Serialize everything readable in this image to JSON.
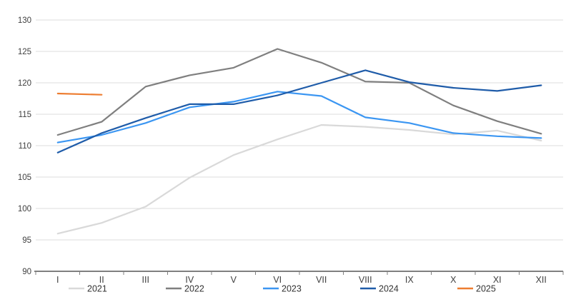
{
  "chart_data": {
    "type": "line",
    "title": "",
    "xlabel": "",
    "ylabel": "",
    "categories": [
      "I",
      "II",
      "III",
      "IV",
      "V",
      "VI",
      "VII",
      "VIII",
      "IX",
      "X",
      "XI",
      "XII"
    ],
    "series": [
      {
        "name": "2021",
        "color": "#D9D9D9",
        "values": [
          96.0,
          97.7,
          100.3,
          104.9,
          108.5,
          111.0,
          113.3,
          113.0,
          112.5,
          111.8,
          112.4,
          110.8
        ]
      },
      {
        "name": "2022",
        "color": "#7F7F7F",
        "values": [
          111.7,
          113.8,
          119.4,
          121.2,
          122.4,
          125.4,
          123.2,
          120.2,
          120.0,
          116.4,
          113.9,
          111.9
        ]
      },
      {
        "name": "2023",
        "color": "#3B96F2",
        "values": [
          110.5,
          111.7,
          113.6,
          116.1,
          117.0,
          118.6,
          117.9,
          114.5,
          113.6,
          112.0,
          111.5,
          111.2
        ]
      },
      {
        "name": "2024",
        "color": "#1F5CA9",
        "values": [
          108.9,
          112.0,
          114.4,
          116.6,
          116.6,
          118.0,
          120.0,
          122.0,
          120.1,
          119.2,
          118.7,
          119.6
        ]
      },
      {
        "name": "2025",
        "color": "#ED7D31",
        "values": [
          118.3,
          118.1,
          null,
          null,
          null,
          null,
          null,
          null,
          null,
          null,
          null,
          null
        ]
      }
    ],
    "ylim": [
      90,
      130
    ],
    "ytick_step": 5,
    "ytick_labels": [
      "90",
      "95",
      "100",
      "105",
      "110",
      "115",
      "120",
      "125",
      "130"
    ],
    "grid": true,
    "legend_position": "bottom",
    "legend_entries": [
      "2021",
      "2022",
      "2023",
      "2024",
      "2025"
    ]
  },
  "style_colors": {
    "gridline": "#DCDCDC",
    "axis_line": "#808080",
    "tick_label": "#404040",
    "legend_text": "#333333",
    "background": "#FFFFFF"
  }
}
